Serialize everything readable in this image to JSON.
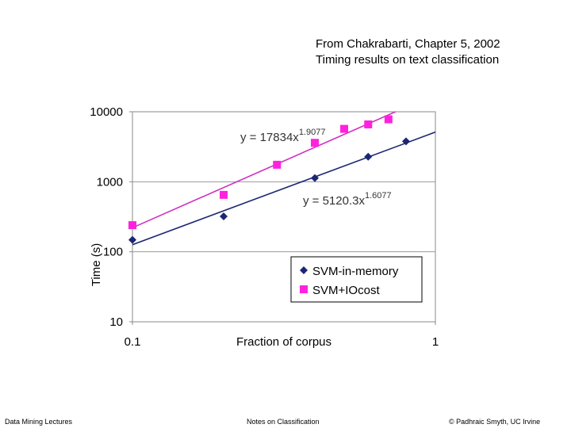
{
  "source_note": {
    "line1": "From Chakrabarti, Chapter 5, 2002",
    "line2": "Timing results on text classification"
  },
  "chart_data": {
    "type": "scatter",
    "xscale": "log",
    "yscale": "log",
    "xlim": [
      0.1,
      1
    ],
    "ylim": [
      10,
      10000
    ],
    "xlabel": "Fraction of corpus",
    "ylabel": "Time (s)",
    "xticks": [
      "0.1",
      "1"
    ],
    "yticks": [
      "10",
      "100",
      "1000",
      "10000"
    ],
    "grid": "horizontal",
    "legend_position": "bottom-right",
    "series": [
      {
        "name": "SVM-in-memory",
        "color": "#1c2773",
        "marker": "diamond",
        "x": [
          0.1,
          0.2,
          0.4,
          0.6,
          0.8
        ],
        "y": [
          148,
          320,
          1130,
          2280,
          3780
        ]
      },
      {
        "name": "SVM+IOcost",
        "color": "#ff22dd",
        "marker": "square",
        "x": [
          0.1,
          0.2,
          0.3,
          0.4,
          0.5,
          0.6,
          0.7
        ],
        "y": [
          240,
          650,
          1750,
          3600,
          5700,
          6600,
          7800
        ]
      }
    ],
    "trendlines": [
      {
        "series": "SVM-in-memory",
        "base": "y = 5120.3x",
        "exponent": "1.6077",
        "a": 5120.3,
        "b": 1.6077,
        "color": "#1c2773"
      },
      {
        "series": "SVM+IOcost",
        "base": "y = 17834x",
        "exponent": "1.9077",
        "a": 17834,
        "b": 1.9077,
        "color": "#d030c0"
      }
    ]
  },
  "footer": {
    "left": "Data Mining Lectures",
    "middle": "Notes on Classification",
    "right": "© Padhraic Smyth, UC Irvine"
  }
}
